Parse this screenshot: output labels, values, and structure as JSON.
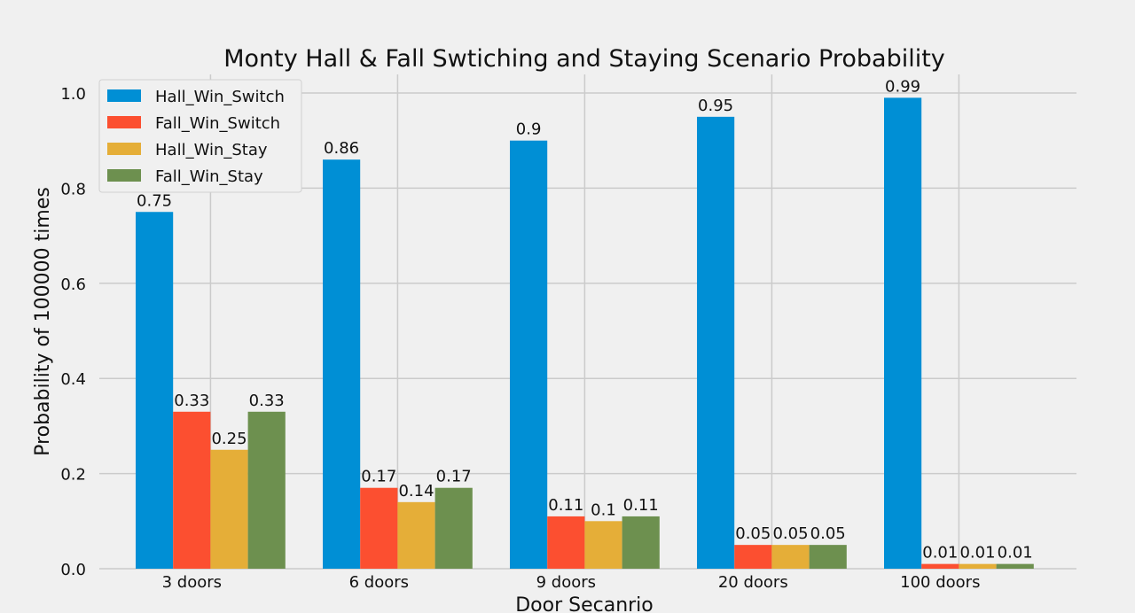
{
  "chart_data": {
    "type": "bar",
    "title": "Monty Hall & Fall Swtiching and Staying Scenario Probability",
    "xlabel": "Door Secanrio",
    "ylabel": "Probability of 100000 times",
    "categories": [
      "3 doors",
      "6 doors",
      "9 doors",
      "20 doors",
      "100 doors"
    ],
    "series": [
      {
        "name": "Hall_Win_Switch",
        "color": "#008fd5",
        "values": [
          0.75,
          0.86,
          0.9,
          0.95,
          0.99
        ],
        "labels": [
          "0.75",
          "0.86",
          "0.9",
          "0.95",
          "0.99"
        ]
      },
      {
        "name": "Fall_Win_Switch",
        "color": "#fc4f30",
        "values": [
          0.33,
          0.17,
          0.11,
          0.05,
          0.01
        ],
        "labels": [
          "0.33",
          "0.17",
          "0.11",
          "0.05",
          "0.01"
        ]
      },
      {
        "name": "Hall_Win_Stay",
        "color": "#e5ae38",
        "values": [
          0.25,
          0.14,
          0.1,
          0.05,
          0.01
        ],
        "labels": [
          "0.25",
          "0.14",
          "0.1",
          "0.05",
          "0.01"
        ]
      },
      {
        "name": "Fall_Win_Stay",
        "color": "#6d904f",
        "values": [
          0.33,
          0.17,
          0.11,
          0.05,
          0.01
        ],
        "labels": [
          "0.33",
          "0.17",
          "0.11",
          "0.05",
          "0.01"
        ]
      }
    ],
    "ylim": [
      0,
      1.04
    ],
    "yticks": [
      "0.0",
      "0.2",
      "0.4",
      "0.6",
      "0.8",
      "1.0"
    ],
    "grid": true,
    "legend_position": "top-left"
  }
}
